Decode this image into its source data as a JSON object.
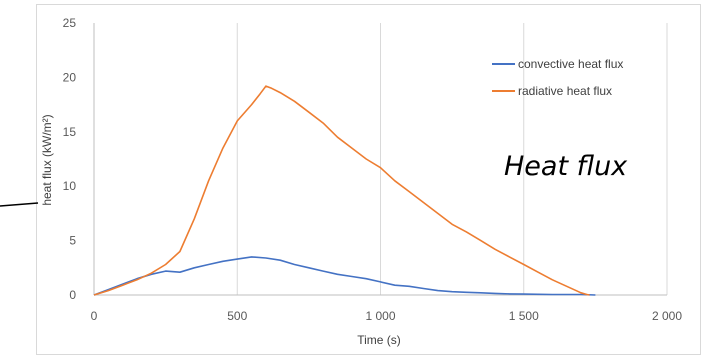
{
  "chart_data": {
    "type": "line",
    "xlabel": "Time (s)",
    "ylabel": "heat flux (kW/m²)",
    "annotation": "Heat flux",
    "xlim": [
      0,
      2000
    ],
    "ylim": [
      0,
      25
    ],
    "x_ticks": [
      0,
      500,
      1000,
      1500,
      2000
    ],
    "x_tick_labels": [
      "0",
      "500",
      "1 000",
      "1 500",
      "2 000"
    ],
    "y_ticks": [
      0,
      5,
      10,
      15,
      20,
      25
    ],
    "y_tick_labels": [
      "0",
      "5",
      "10",
      "15",
      "20",
      "25"
    ],
    "grid": "vertical",
    "legend_position": "top-right",
    "series": [
      {
        "name": "convective heat flux",
        "color": "#4472C4",
        "x": [
          0,
          50,
          100,
          150,
          200,
          250,
          300,
          350,
          400,
          450,
          500,
          550,
          600,
          650,
          700,
          750,
          800,
          850,
          900,
          950,
          1000,
          1050,
          1100,
          1150,
          1200,
          1250,
          1300,
          1350,
          1400,
          1450,
          1500,
          1600,
          1700,
          1750
        ],
        "y": [
          0,
          0.5,
          1.0,
          1.5,
          1.9,
          2.2,
          2.1,
          2.5,
          2.8,
          3.1,
          3.3,
          3.5,
          3.4,
          3.2,
          2.8,
          2.5,
          2.2,
          1.9,
          1.7,
          1.5,
          1.2,
          0.9,
          0.8,
          0.6,
          0.4,
          0.3,
          0.25,
          0.2,
          0.15,
          0.1,
          0.08,
          0.05,
          0.05,
          0
        ]
      },
      {
        "name": "radiative heat flux",
        "color": "#ED7D31",
        "x": [
          0,
          50,
          100,
          150,
          200,
          250,
          300,
          350,
          400,
          450,
          500,
          550,
          580,
          600,
          620,
          650,
          700,
          750,
          800,
          850,
          900,
          950,
          1000,
          1050,
          1100,
          1150,
          1200,
          1250,
          1300,
          1350,
          1400,
          1450,
          1500,
          1550,
          1600,
          1650,
          1700,
          1720,
          1730
        ],
        "y": [
          0,
          0.4,
          0.9,
          1.4,
          2.0,
          2.8,
          4.0,
          7.0,
          10.5,
          13.5,
          16.0,
          17.5,
          18.5,
          19.2,
          19.0,
          18.6,
          17.8,
          16.8,
          15.8,
          14.5,
          13.5,
          12.5,
          11.7,
          10.5,
          9.5,
          8.5,
          7.5,
          6.5,
          5.8,
          5.0,
          4.2,
          3.5,
          2.8,
          2.1,
          1.4,
          0.8,
          0.2,
          0.05,
          0
        ]
      }
    ]
  }
}
